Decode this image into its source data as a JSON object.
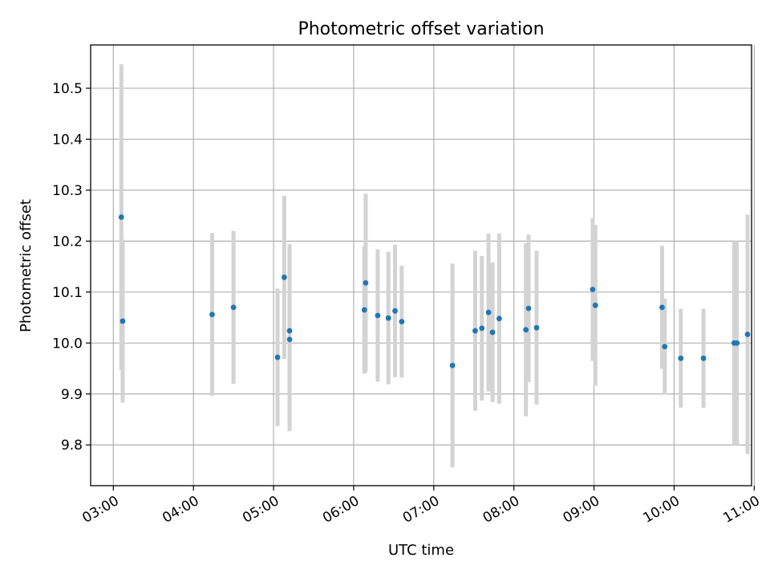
{
  "chart_data": {
    "type": "scatter",
    "title": "Photometric offset variation",
    "xlabel": "UTC time",
    "ylabel": "Photometric offset",
    "x_axis": {
      "kind": "time",
      "range": [
        "02:43",
        "10:58"
      ],
      "ticks": [
        "03:00",
        "04:00",
        "05:00",
        "06:00",
        "07:00",
        "08:00",
        "09:00",
        "10:00",
        "11:00"
      ]
    },
    "y_axis": {
      "range": [
        9.72,
        10.585
      ],
      "ticks": [
        9.8,
        9.9,
        10.0,
        10.1,
        10.2,
        10.3,
        10.4,
        10.5
      ],
      "tick_labels": [
        "9.8",
        "9.9",
        "10.0",
        "10.1",
        "10.2",
        "10.3",
        "10.4",
        "10.5"
      ]
    },
    "grid": true,
    "colors": {
      "point": "#1f77b4",
      "errorbar": "#d3d3d3",
      "grid": "#b0b0b0"
    },
    "points": [
      {
        "x": "03:06",
        "y": 10.247,
        "err": 0.3
      },
      {
        "x": "03:07",
        "y": 10.043,
        "err": 0.16
      },
      {
        "x": "04:14",
        "y": 10.056,
        "err": 0.16
      },
      {
        "x": "04:30",
        "y": 10.07,
        "err": 0.15
      },
      {
        "x": "05:03",
        "y": 9.972,
        "err": 0.135
      },
      {
        "x": "05:08",
        "y": 10.129,
        "err": 0.16
      },
      {
        "x": "05:12",
        "y": 10.024,
        "err": 0.17
      },
      {
        "x": "05:12",
        "y": 10.007,
        "err": 0.18
      },
      {
        "x": "06:08",
        "y": 10.065,
        "err": 0.125
      },
      {
        "x": "06:09",
        "y": 10.118,
        "err": 0.175
      },
      {
        "x": "06:18",
        "y": 10.054,
        "err": 0.13
      },
      {
        "x": "06:26",
        "y": 10.049,
        "err": 0.13
      },
      {
        "x": "06:31",
        "y": 10.063,
        "err": 0.13
      },
      {
        "x": "06:36",
        "y": 10.042,
        "err": 0.11
      },
      {
        "x": "07:14",
        "y": 9.956,
        "err": 0.2
      },
      {
        "x": "07:31",
        "y": 10.024,
        "err": 0.157
      },
      {
        "x": "07:36",
        "y": 10.029,
        "err": 0.142
      },
      {
        "x": "07:41",
        "y": 10.06,
        "err": 0.155
      },
      {
        "x": "07:44",
        "y": 10.021,
        "err": 0.137
      },
      {
        "x": "07:49",
        "y": 10.048,
        "err": 0.167
      },
      {
        "x": "08:09",
        "y": 10.026,
        "err": 0.17
      },
      {
        "x": "08:11",
        "y": 10.068,
        "err": 0.145
      },
      {
        "x": "08:17",
        "y": 10.03,
        "err": 0.151
      },
      {
        "x": "08:59",
        "y": 10.105,
        "err": 0.14
      },
      {
        "x": "09:01",
        "y": 10.074,
        "err": 0.158
      },
      {
        "x": "09:51",
        "y": 10.07,
        "err": 0.121
      },
      {
        "x": "09:53",
        "y": 9.993,
        "err": 0.094
      },
      {
        "x": "10:05",
        "y": 9.97,
        "err": 0.097
      },
      {
        "x": "10:22",
        "y": 9.97,
        "err": 0.097
      },
      {
        "x": "10:45",
        "y": 10.0,
        "err": 0.2
      },
      {
        "x": "10:47",
        "y": 10.0,
        "err": 0.2
      },
      {
        "x": "10:55",
        "y": 10.017,
        "err": 0.235
      }
    ]
  }
}
